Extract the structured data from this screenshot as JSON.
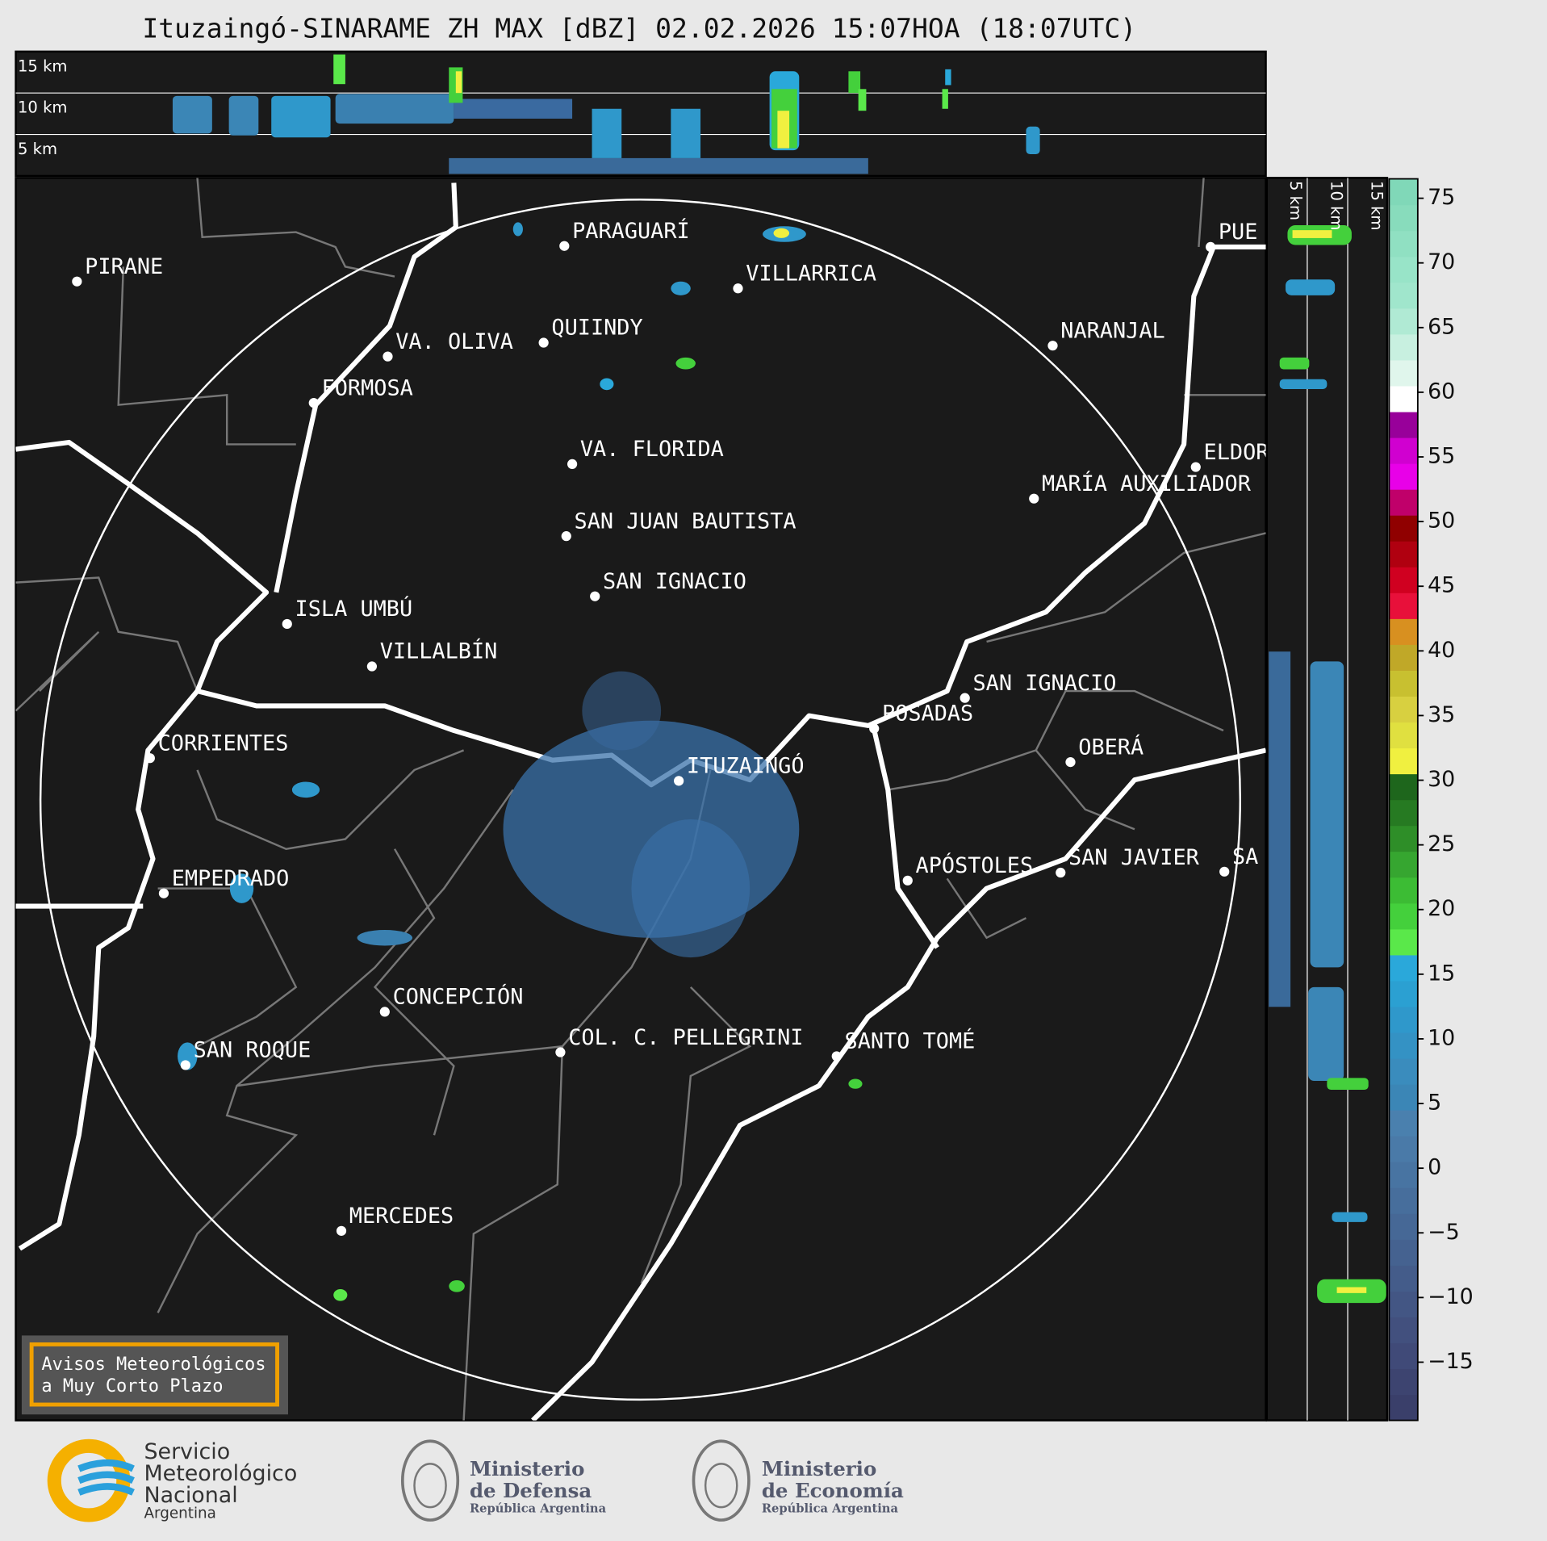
{
  "title": "Ituzaingó-SINARAME ZH MAX [dBZ] 02.02.2026 15:07HOA (18:07UTC)",
  "top_section": {
    "labels": [
      "15 km",
      "10 km",
      "5 km"
    ]
  },
  "side_section": {
    "labels": [
      "5 km",
      "10 km",
      "15 km"
    ]
  },
  "cities": [
    "PARAGUARÍ",
    "PIRANE",
    "VILLARRICA",
    "QUIINDY",
    "VA. OLIVA",
    "NARANJAL",
    "FORMOSA",
    "VA. FLORIDA",
    "ELDOR",
    "MARÍA AUXILIADOR",
    "SAN JUAN BAUTISTA",
    "SAN IGNACIO",
    "ISLA UMBÚ",
    "VILLALBÍN",
    "SAN IGNACIO",
    "POSADAS",
    "CORRIENTES",
    "OBERÁ",
    "ITUZAINGÓ",
    "APÓSTOLES",
    "SAN JAVIER",
    "SA",
    "EMPEDRADO",
    "CONCEPCIÓN",
    "COL. C. PELLEGRINI",
    "SANTO TOMÉ",
    "SAN ROQUE",
    "MERCEDES",
    "PUE"
  ],
  "colorbar": {
    "ylim": [
      -19.5,
      76.5
    ],
    "yticks": [
      75,
      70,
      65,
      60,
      55,
      50,
      45,
      40,
      35,
      30,
      25,
      20,
      15,
      10,
      5,
      0,
      {
        "value": -5,
        "label": "−5"
      },
      {
        "value": -10,
        "label": "−10"
      },
      {
        "value": -15,
        "label": "−15"
      }
    ],
    "colors": [
      "#3a3f6a",
      "#3d4470",
      "#404a78",
      "#42507e",
      "#435684",
      "#445c8a",
      "#456290",
      "#466896",
      "#476e9c",
      "#4874a2",
      "#4a7aa8",
      "#4a80ae",
      "#3b86b6",
      "#3a8cbd",
      "#3492c4",
      "#2f98cb",
      "#2ba0d2",
      "#2aa8da",
      "#5ae84a",
      "#44d03c",
      "#3cbc34",
      "#36a630",
      "#2e8e28",
      "#267a22",
      "#1e661c",
      "#f0f040",
      "#e0e040",
      "#d8d040",
      "#c8c030",
      "#c0a828",
      "#d89020",
      "#e8103a",
      "#d00020",
      "#b00010",
      "#900000",
      "#c0006a",
      "#e800e8",
      "#d000d0",
      "#98009a",
      "#ffffff",
      "#e0f6ec",
      "#c8f0e0",
      "#b0ead4",
      "#a0e6cc",
      "#98e4c8",
      "#90e0c2",
      "#88dcbc",
      "#80d8b8"
    ]
  },
  "warning": {
    "lines": [
      "Avisos Meteorológicos",
      "a Muy Corto Plazo"
    ]
  },
  "footer": {
    "smn": [
      "Servicio",
      "Meteorológico",
      "Nacional",
      "Argentina"
    ],
    "defensa": [
      "Ministerio",
      "de Defensa",
      "República Argentina"
    ],
    "economia": [
      "Ministerio",
      "de Economía",
      "República Argentina"
    ]
  }
}
